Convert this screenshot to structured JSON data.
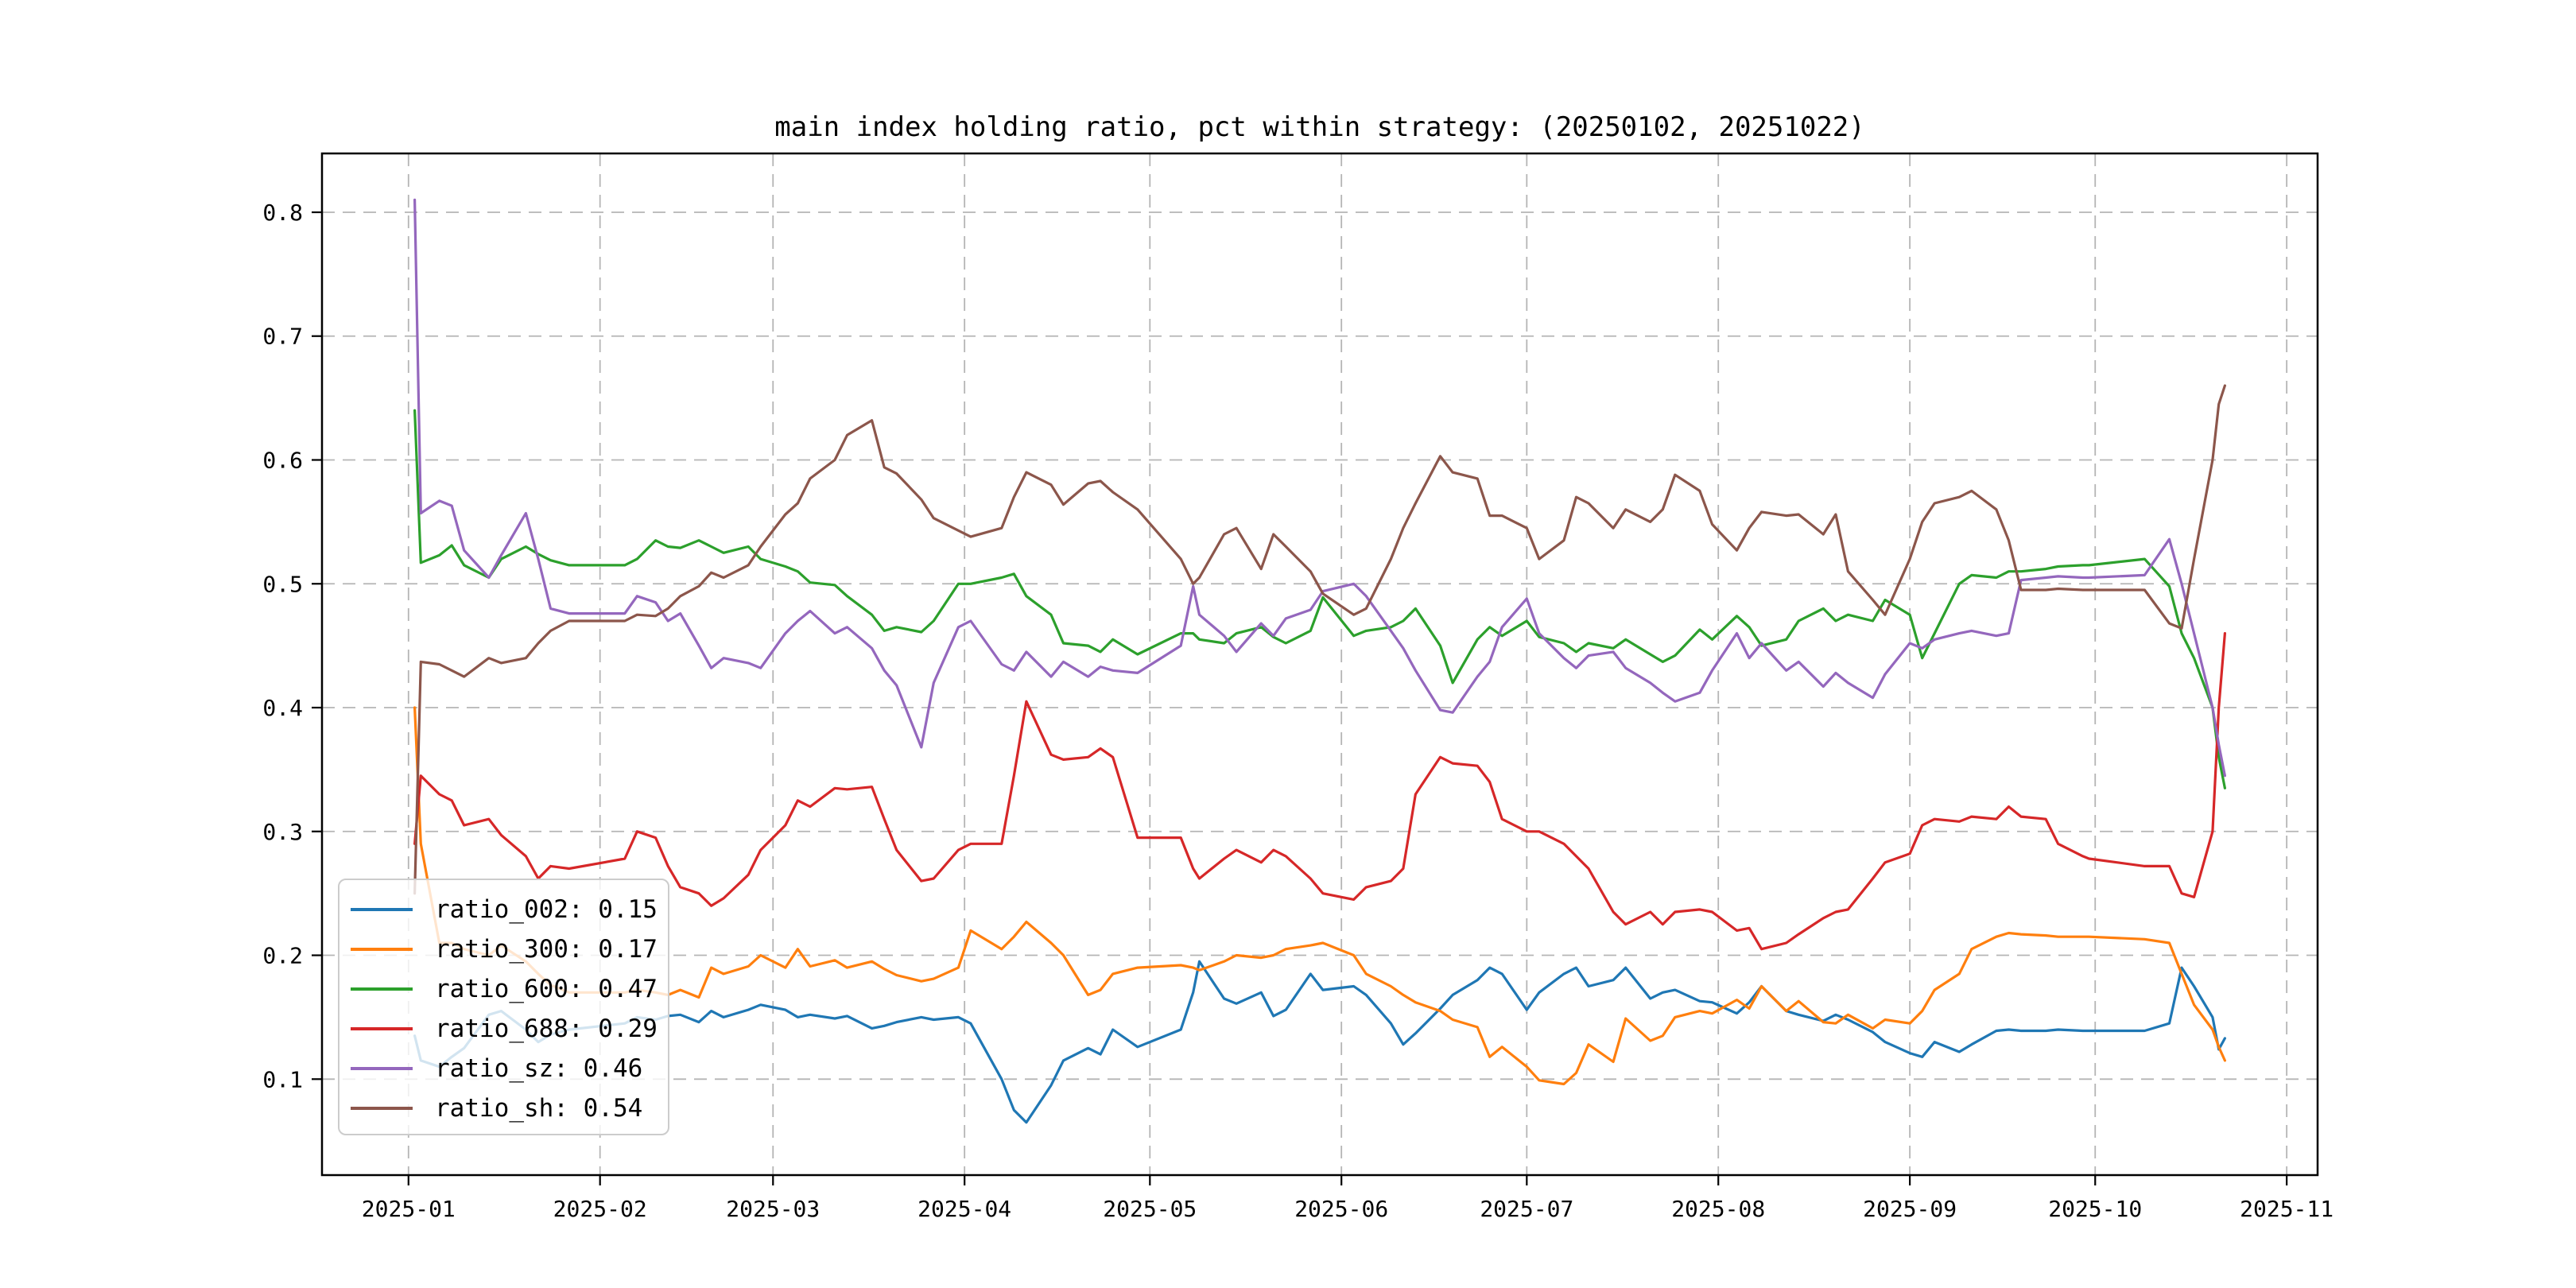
{
  "chart_data": {
    "type": "line",
    "title": "main index holding ratio, pct within strategy: (20250102, 20251022)",
    "xlabel": "",
    "ylabel": "",
    "grid": true,
    "legend_position": "lower left",
    "ylim": [
      0.0225,
      0.8475
    ],
    "xlim_dates": [
      "2024-12-18",
      "2025-11-06"
    ],
    "y_ticks": [
      0.1,
      0.2,
      0.3,
      0.4,
      0.5,
      0.6,
      0.7,
      0.8
    ],
    "x_tick_dates": [
      "2025-01-01",
      "2025-02-01",
      "2025-03-01",
      "2025-04-01",
      "2025-05-01",
      "2025-06-01",
      "2025-07-01",
      "2025-08-01",
      "2025-09-01",
      "2025-10-01",
      "2025-11-01"
    ],
    "x_tick_labels": [
      "2025-01",
      "2025-02",
      "2025-03",
      "2025-04",
      "2025-05",
      "2025-06",
      "2025-07",
      "2025-08",
      "2025-09",
      "2025-10",
      "2025-11"
    ],
    "dates": [
      "2025-01-02",
      "2025-01-03",
      "2025-01-06",
      "2025-01-08",
      "2025-01-10",
      "2025-01-14",
      "2025-01-16",
      "2025-01-20",
      "2025-01-22",
      "2025-01-24",
      "2025-01-27",
      "2025-02-05",
      "2025-02-07",
      "2025-02-10",
      "2025-02-12",
      "2025-02-14",
      "2025-02-17",
      "2025-02-19",
      "2025-02-21",
      "2025-02-25",
      "2025-02-27",
      "2025-03-03",
      "2025-03-05",
      "2025-03-07",
      "2025-03-11",
      "2025-03-13",
      "2025-03-17",
      "2025-03-19",
      "2025-03-21",
      "2025-03-25",
      "2025-03-27",
      "2025-03-31",
      "2025-04-02",
      "2025-04-07",
      "2025-04-09",
      "2025-04-11",
      "2025-04-15",
      "2025-04-17",
      "2025-04-21",
      "2025-04-23",
      "2025-04-25",
      "2025-04-29",
      "2025-05-06",
      "2025-05-08",
      "2025-05-09",
      "2025-05-13",
      "2025-05-15",
      "2025-05-19",
      "2025-05-21",
      "2025-05-23",
      "2025-05-27",
      "2025-05-29",
      "2025-06-03",
      "2025-06-05",
      "2025-06-09",
      "2025-06-11",
      "2025-06-13",
      "2025-06-17",
      "2025-06-19",
      "2025-06-23",
      "2025-06-25",
      "2025-06-27",
      "2025-07-01",
      "2025-07-03",
      "2025-07-07",
      "2025-07-09",
      "2025-07-11",
      "2025-07-15",
      "2025-07-17",
      "2025-07-21",
      "2025-07-23",
      "2025-07-25",
      "2025-07-29",
      "2025-07-31",
      "2025-08-04",
      "2025-08-06",
      "2025-08-08",
      "2025-08-12",
      "2025-08-14",
      "2025-08-18",
      "2025-08-20",
      "2025-08-22",
      "2025-08-26",
      "2025-08-28",
      "2025-09-01",
      "2025-09-03",
      "2025-09-05",
      "2025-09-09",
      "2025-09-11",
      "2025-09-15",
      "2025-09-17",
      "2025-09-19",
      "2025-09-23",
      "2025-09-25",
      "2025-09-29",
      "2025-09-30",
      "2025-10-09",
      "2025-10-13",
      "2025-10-15",
      "2025-10-17",
      "2025-10-20",
      "2025-10-21",
      "2025-10-22"
    ],
    "series": [
      {
        "name": "ratio_002",
        "legend_label": "ratio_002: 0.15",
        "shown_value": 0.15,
        "color": "#1f77b4",
        "values": [
          0.135,
          0.115,
          0.11,
          0.118,
          0.125,
          0.152,
          0.155,
          0.14,
          0.13,
          0.136,
          0.14,
          0.145,
          0.15,
          0.148,
          0.151,
          0.152,
          0.146,
          0.155,
          0.15,
          0.156,
          0.16,
          0.156,
          0.15,
          0.152,
          0.149,
          0.151,
          0.141,
          0.143,
          0.146,
          0.15,
          0.148,
          0.15,
          0.145,
          0.1,
          0.075,
          0.065,
          0.095,
          0.115,
          0.125,
          0.12,
          0.14,
          0.126,
          0.14,
          0.17,
          0.195,
          0.165,
          0.161,
          0.17,
          0.151,
          0.156,
          0.185,
          0.172,
          0.175,
          0.168,
          0.145,
          0.128,
          0.137,
          0.157,
          0.168,
          0.18,
          0.19,
          0.185,
          0.156,
          0.17,
          0.185,
          0.19,
          0.175,
          0.18,
          0.19,
          0.165,
          0.17,
          0.172,
          0.163,
          0.162,
          0.153,
          0.162,
          0.175,
          0.155,
          0.152,
          0.147,
          0.152,
          0.148,
          0.138,
          0.13,
          0.121,
          0.118,
          0.13,
          0.122,
          0.128,
          0.139,
          0.14,
          0.139,
          0.139,
          0.14,
          0.139,
          0.139,
          0.139,
          0.145,
          0.19,
          0.175,
          0.15,
          0.124,
          0.133
        ]
      },
      {
        "name": "ratio_300",
        "legend_label": "ratio_300: 0.17",
        "shown_value": 0.17,
        "color": "#ff7f0e",
        "values": [
          0.4,
          0.29,
          0.21,
          0.21,
          0.205,
          0.2,
          0.208,
          0.195,
          0.185,
          0.176,
          0.17,
          0.17,
          0.172,
          0.17,
          0.168,
          0.172,
          0.166,
          0.19,
          0.185,
          0.191,
          0.2,
          0.19,
          0.205,
          0.191,
          0.196,
          0.19,
          0.195,
          0.189,
          0.184,
          0.179,
          0.181,
          0.19,
          0.22,
          0.205,
          0.215,
          0.227,
          0.21,
          0.2,
          0.168,
          0.172,
          0.185,
          0.19,
          0.192,
          0.19,
          0.188,
          0.195,
          0.2,
          0.198,
          0.2,
          0.205,
          0.208,
          0.21,
          0.2,
          0.185,
          0.175,
          0.168,
          0.162,
          0.155,
          0.148,
          0.142,
          0.118,
          0.126,
          0.11,
          0.099,
          0.096,
          0.105,
          0.128,
          0.114,
          0.149,
          0.131,
          0.135,
          0.15,
          0.155,
          0.153,
          0.164,
          0.157,
          0.175,
          0.155,
          0.163,
          0.146,
          0.145,
          0.152,
          0.141,
          0.148,
          0.145,
          0.155,
          0.172,
          0.185,
          0.205,
          0.215,
          0.218,
          0.217,
          0.216,
          0.215,
          0.215,
          0.215,
          0.213,
          0.21,
          0.185,
          0.16,
          0.14,
          0.126,
          0.115
        ]
      },
      {
        "name": "ratio_600",
        "legend_label": "ratio_600: 0.47",
        "shown_value": 0.47,
        "color": "#2ca02c",
        "values": [
          0.64,
          0.517,
          0.523,
          0.531,
          0.515,
          0.505,
          0.52,
          0.53,
          0.524,
          0.519,
          0.515,
          0.515,
          0.52,
          0.535,
          0.53,
          0.529,
          0.535,
          0.53,
          0.525,
          0.53,
          0.52,
          0.514,
          0.51,
          0.501,
          0.499,
          0.49,
          0.475,
          0.462,
          0.465,
          0.461,
          0.47,
          0.5,
          0.5,
          0.505,
          0.508,
          0.49,
          0.475,
          0.452,
          0.45,
          0.445,
          0.455,
          0.443,
          0.46,
          0.46,
          0.455,
          0.452,
          0.46,
          0.465,
          0.457,
          0.452,
          0.462,
          0.489,
          0.458,
          0.462,
          0.465,
          0.47,
          0.48,
          0.45,
          0.42,
          0.455,
          0.465,
          0.458,
          0.47,
          0.457,
          0.452,
          0.445,
          0.452,
          0.448,
          0.455,
          0.443,
          0.437,
          0.442,
          0.463,
          0.455,
          0.474,
          0.465,
          0.45,
          0.455,
          0.47,
          0.48,
          0.47,
          0.475,
          0.47,
          0.487,
          0.475,
          0.44,
          0.46,
          0.5,
          0.507,
          0.505,
          0.51,
          0.51,
          0.512,
          0.514,
          0.515,
          0.515,
          0.52,
          0.498,
          0.46,
          0.44,
          0.4,
          0.36,
          0.335
        ]
      },
      {
        "name": "ratio_688",
        "legend_label": "ratio_688: 0.29",
        "shown_value": 0.29,
        "color": "#d62728",
        "values": [
          0.29,
          0.345,
          0.33,
          0.325,
          0.305,
          0.31,
          0.297,
          0.28,
          0.262,
          0.272,
          0.27,
          0.278,
          0.3,
          0.295,
          0.272,
          0.255,
          0.25,
          0.24,
          0.246,
          0.265,
          0.285,
          0.305,
          0.325,
          0.32,
          0.335,
          0.334,
          0.336,
          0.31,
          0.285,
          0.26,
          0.262,
          0.285,
          0.29,
          0.29,
          0.345,
          0.405,
          0.362,
          0.358,
          0.36,
          0.367,
          0.36,
          0.295,
          0.295,
          0.27,
          0.262,
          0.278,
          0.285,
          0.275,
          0.285,
          0.28,
          0.262,
          0.25,
          0.245,
          0.255,
          0.26,
          0.27,
          0.33,
          0.36,
          0.355,
          0.353,
          0.34,
          0.31,
          0.3,
          0.3,
          0.29,
          0.28,
          0.27,
          0.235,
          0.225,
          0.235,
          0.225,
          0.235,
          0.237,
          0.235,
          0.22,
          0.222,
          0.205,
          0.21,
          0.217,
          0.23,
          0.235,
          0.237,
          0.262,
          0.275,
          0.282,
          0.305,
          0.31,
          0.308,
          0.312,
          0.31,
          0.32,
          0.312,
          0.31,
          0.29,
          0.28,
          0.278,
          0.272,
          0.272,
          0.25,
          0.247,
          0.3,
          0.4,
          0.46
        ]
      },
      {
        "name": "ratio_sz",
        "legend_label": "ratio_sz: 0.46",
        "shown_value": 0.46,
        "color": "#9467bd",
        "values": [
          0.81,
          0.557,
          0.567,
          0.563,
          0.527,
          0.505,
          0.523,
          0.557,
          0.52,
          0.48,
          0.476,
          0.476,
          0.49,
          0.485,
          0.47,
          0.476,
          0.45,
          0.432,
          0.44,
          0.436,
          0.432,
          0.46,
          0.47,
          0.478,
          0.46,
          0.465,
          0.448,
          0.43,
          0.418,
          0.368,
          0.42,
          0.465,
          0.47,
          0.435,
          0.43,
          0.445,
          0.425,
          0.437,
          0.425,
          0.433,
          0.43,
          0.428,
          0.45,
          0.498,
          0.475,
          0.458,
          0.445,
          0.468,
          0.458,
          0.472,
          0.479,
          0.494,
          0.5,
          0.49,
          0.462,
          0.448,
          0.43,
          0.398,
          0.396,
          0.425,
          0.437,
          0.465,
          0.488,
          0.46,
          0.44,
          0.432,
          0.442,
          0.445,
          0.432,
          0.42,
          0.412,
          0.405,
          0.412,
          0.43,
          0.46,
          0.44,
          0.452,
          0.43,
          0.437,
          0.417,
          0.428,
          0.42,
          0.408,
          0.427,
          0.452,
          0.448,
          0.455,
          0.46,
          0.462,
          0.458,
          0.46,
          0.503,
          0.505,
          0.506,
          0.505,
          0.505,
          0.507,
          0.536,
          0.5,
          0.46,
          0.4,
          0.37,
          0.345
        ]
      },
      {
        "name": "ratio_sh",
        "legend_label": "ratio_sh: 0.54",
        "shown_value": 0.54,
        "color": "#8c564b",
        "values": [
          0.25,
          0.437,
          0.435,
          0.43,
          0.425,
          0.44,
          0.436,
          0.44,
          0.452,
          0.462,
          0.47,
          0.47,
          0.475,
          0.474,
          0.48,
          0.49,
          0.498,
          0.509,
          0.505,
          0.515,
          0.53,
          0.556,
          0.565,
          0.585,
          0.6,
          0.62,
          0.632,
          0.594,
          0.589,
          0.568,
          0.553,
          0.543,
          0.538,
          0.545,
          0.57,
          0.59,
          0.58,
          0.564,
          0.581,
          0.583,
          0.574,
          0.56,
          0.52,
          0.5,
          0.505,
          0.54,
          0.545,
          0.512,
          0.54,
          0.53,
          0.51,
          0.492,
          0.475,
          0.48,
          0.52,
          0.545,
          0.565,
          0.603,
          0.59,
          0.585,
          0.555,
          0.555,
          0.545,
          0.52,
          0.535,
          0.57,
          0.565,
          0.545,
          0.56,
          0.55,
          0.56,
          0.588,
          0.575,
          0.548,
          0.527,
          0.545,
          0.558,
          0.555,
          0.556,
          0.54,
          0.556,
          0.51,
          0.487,
          0.475,
          0.52,
          0.55,
          0.565,
          0.57,
          0.575,
          0.56,
          0.535,
          0.495,
          0.495,
          0.496,
          0.495,
          0.495,
          0.495,
          0.468,
          0.464,
          0.52,
          0.6,
          0.645,
          0.66
        ]
      }
    ]
  }
}
